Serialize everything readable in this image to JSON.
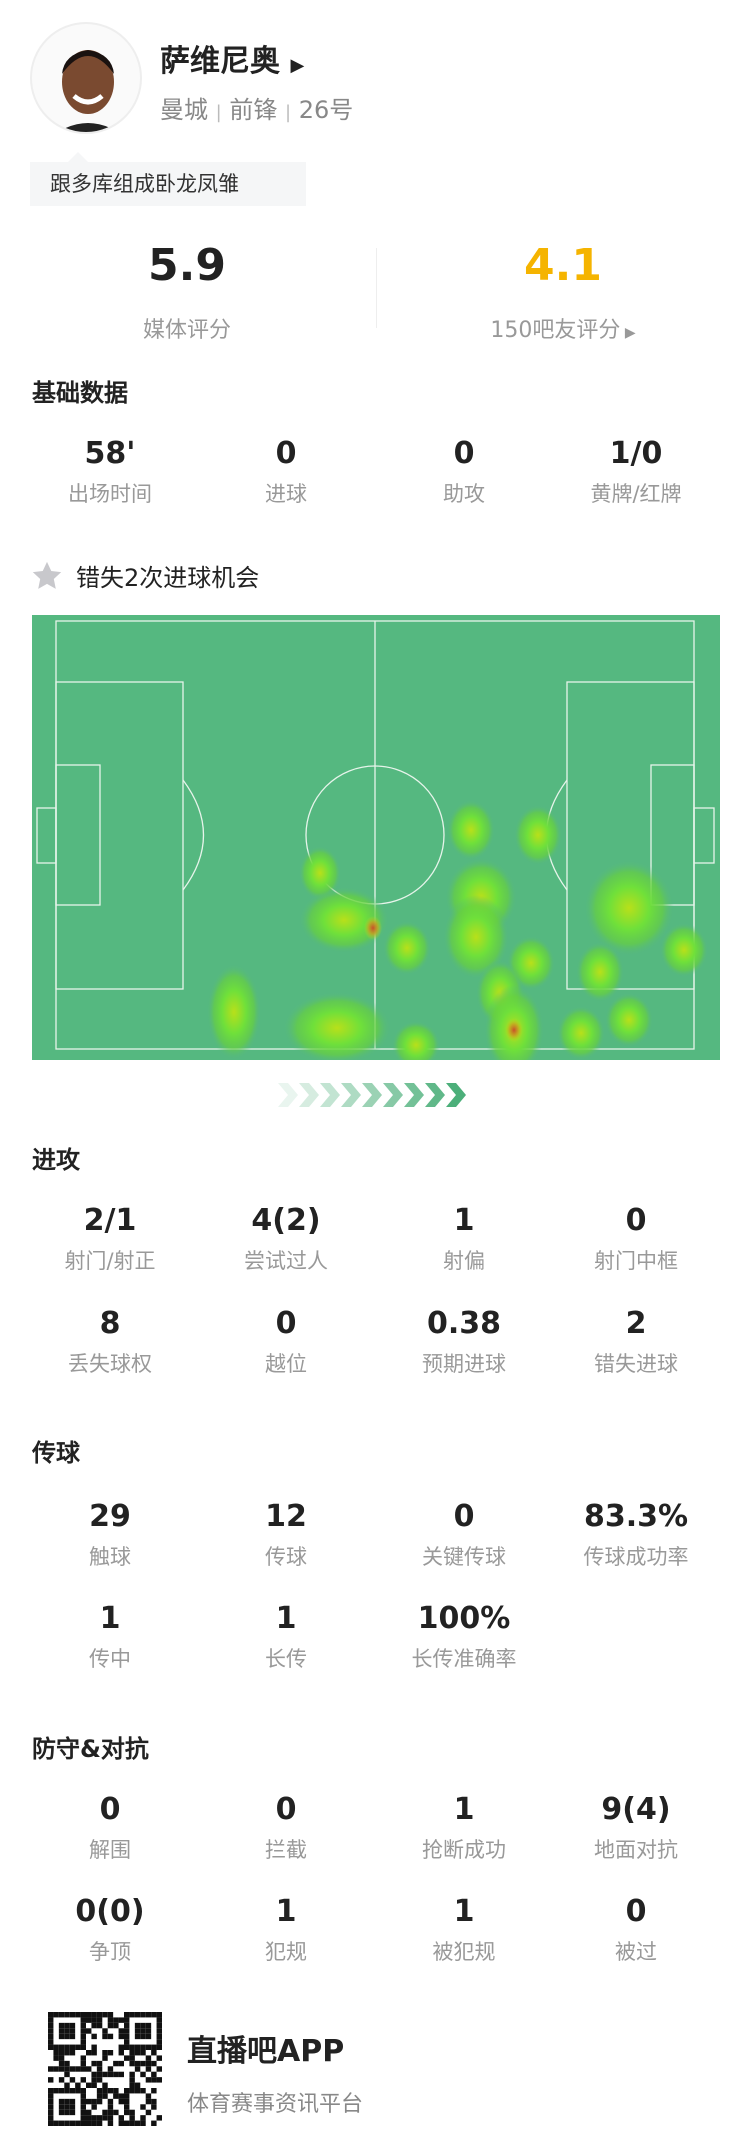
{
  "player": {
    "name": "萨维尼奥",
    "team": "曼城",
    "position": "前锋",
    "number": "26号",
    "sep": "|",
    "tag": "跟多库组成卧龙凤雏"
  },
  "ratings": {
    "media_value": "5.9",
    "media_label": "媒体评分",
    "fan_value": "4.1",
    "fan_label": "150吧友评分",
    "fan_color": "#f5b400"
  },
  "basic": {
    "title": "基础数据",
    "items": [
      {
        "v": "58'",
        "l": "出场时间"
      },
      {
        "v": "0",
        "l": "进球"
      },
      {
        "v": "0",
        "l": "助攻"
      },
      {
        "v": "1/0",
        "l": "黄牌/红牌"
      }
    ]
  },
  "highlight": {
    "text": "错失2次进球机会",
    "icon": "star-icon"
  },
  "attack": {
    "title": "进攻",
    "items": [
      {
        "v": "2/1",
        "l": "射门/射正"
      },
      {
        "v": "4(2)",
        "l": "尝试过人"
      },
      {
        "v": "1",
        "l": "射偏"
      },
      {
        "v": "0",
        "l": "射门中框"
      },
      {
        "v": "8",
        "l": "丢失球权"
      },
      {
        "v": "0",
        "l": "越位"
      },
      {
        "v": "0.38",
        "l": "预期进球"
      },
      {
        "v": "2",
        "l": "错失进球"
      }
    ]
  },
  "passing": {
    "title": "传球",
    "items": [
      {
        "v": "29",
        "l": "触球"
      },
      {
        "v": "12",
        "l": "传球"
      },
      {
        "v": "0",
        "l": "关键传球"
      },
      {
        "v": "83.3%",
        "l": "传球成功率"
      },
      {
        "v": "1",
        "l": "传中"
      },
      {
        "v": "1",
        "l": "长传"
      },
      {
        "v": "100%",
        "l": "长传准确率"
      }
    ]
  },
  "defense": {
    "title": "防守&对抗",
    "items": [
      {
        "v": "0",
        "l": "解围"
      },
      {
        "v": "0",
        "l": "拦截"
      },
      {
        "v": "1",
        "l": "抢断成功"
      },
      {
        "v": "9(4)",
        "l": "地面对抗"
      },
      {
        "v": "0(0)",
        "l": "争顶"
      },
      {
        "v": "1",
        "l": "犯规"
      },
      {
        "v": "1",
        "l": "被犯规"
      },
      {
        "v": "0",
        "l": "被过"
      }
    ]
  },
  "footer": {
    "app": "直播吧APP",
    "slogan": "体育赛事资讯平台"
  },
  "colors": {
    "pitch": "#55b880",
    "line": "#e6f4ea",
    "arrow": "#4caf7a"
  }
}
